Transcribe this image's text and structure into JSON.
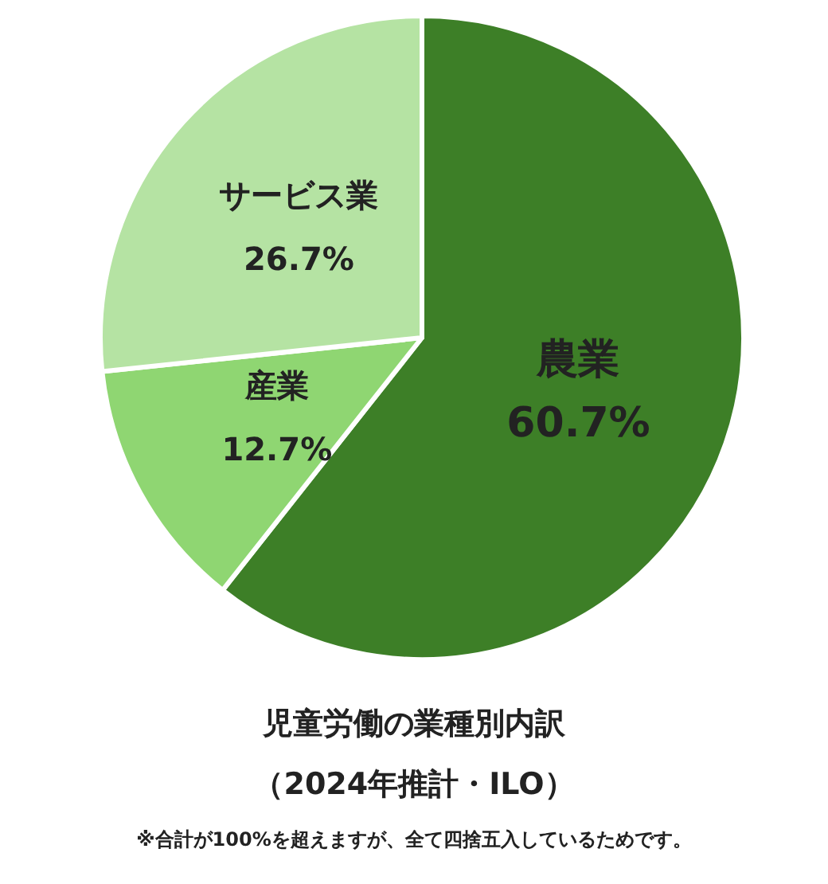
{
  "chart_data": {
    "type": "pie",
    "title": "児童労働の業種別内訳",
    "subtitle": "（2024年推計・ILO）",
    "annotations": [
      "※合計が100%を超えますが、全て四捨五入しているためです。"
    ],
    "categories": [
      "農業",
      "産業",
      "サービス業"
    ],
    "values": [
      60.7,
      12.7,
      26.7
    ],
    "value_labels": [
      "60.7%",
      "12.7%",
      "26.7%"
    ],
    "colors": [
      "#3d7f27",
      "#8fd672",
      "#b5e3a3"
    ],
    "legend": false
  }
}
